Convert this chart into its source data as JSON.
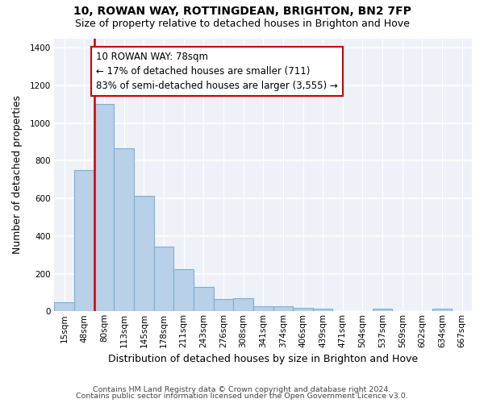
{
  "title1": "10, ROWAN WAY, ROTTINGDEAN, BRIGHTON, BN2 7FP",
  "title2": "Size of property relative to detached houses in Brighton and Hove",
  "xlabel": "Distribution of detached houses by size in Brighton and Hove",
  "ylabel": "Number of detached properties",
  "footer1": "Contains HM Land Registry data © Crown copyright and database right 2024.",
  "footer2": "Contains public sector information licensed under the Open Government Licence v3.0.",
  "categories": [
    "15sqm",
    "48sqm",
    "80sqm",
    "113sqm",
    "145sqm",
    "178sqm",
    "211sqm",
    "243sqm",
    "276sqm",
    "308sqm",
    "341sqm",
    "374sqm",
    "406sqm",
    "439sqm",
    "471sqm",
    "504sqm",
    "537sqm",
    "569sqm",
    "602sqm",
    "634sqm",
    "667sqm"
  ],
  "bar_heights": [
    50,
    750,
    1100,
    865,
    615,
    345,
    225,
    130,
    65,
    70,
    25,
    25,
    20,
    13,
    0,
    0,
    12,
    0,
    0,
    12,
    0
  ],
  "red_line_index": 1.5,
  "annotation_text": "10 ROWAN WAY: 78sqm\n← 17% of detached houses are smaller (711)\n83% of semi-detached houses are larger (3,555) →",
  "bar_color": "#b8d0e8",
  "bar_edge_color": "#7aafd4",
  "line_color": "#cc0000",
  "annotation_box_edge_color": "#cc0000",
  "bg_color": "#eef2f8",
  "grid_color": "#ffffff",
  "ylim": [
    0,
    1450
  ],
  "yticks": [
    0,
    200,
    400,
    600,
    800,
    1000,
    1200,
    1400
  ],
  "title1_fontsize": 10,
  "title2_fontsize": 9,
  "ylabel_fontsize": 9,
  "xlabel_fontsize": 9,
  "tick_fontsize": 7.5,
  "annotation_fontsize": 8.5,
  "footer_fontsize": 6.8
}
